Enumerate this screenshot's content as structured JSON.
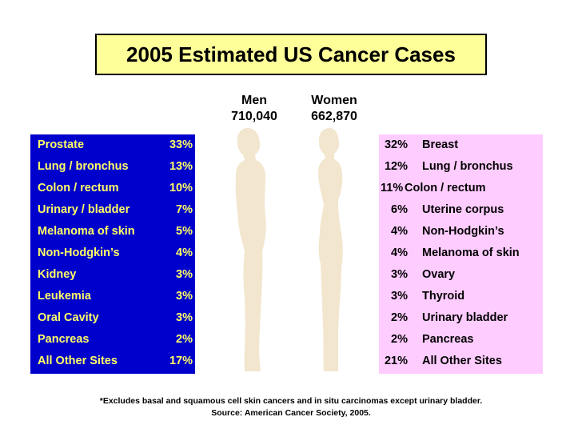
{
  "title": "2005 Estimated US Cancer Cases",
  "chart_data": {
    "type": "table",
    "title": "2005 Estimated US Cancer Cases",
    "men": {
      "label": "Men",
      "total": "710,040",
      "sites": [
        {
          "site": "Prostate",
          "pct": "33%",
          "value": 33
        },
        {
          "site": "Lung / bronchus",
          "pct": "13%",
          "value": 13
        },
        {
          "site": "Colon / rectum",
          "pct": "10%",
          "value": 10
        },
        {
          "site": "Urinary / bladder",
          "pct": "7%",
          "value": 7
        },
        {
          "site": "Melanoma of skin",
          "pct": "5%",
          "value": 5
        },
        {
          "site": "Non-Hodgkin’s",
          "pct": "4%",
          "value": 4
        },
        {
          "site": "Kidney",
          "pct": "3%",
          "value": 3
        },
        {
          "site": "Leukemia",
          "pct": "3%",
          "value": 3
        },
        {
          "site": "Oral Cavity",
          "pct": "3%",
          "value": 3
        },
        {
          "site": "Pancreas",
          "pct": "2%",
          "value": 2
        },
        {
          "site": "All Other Sites",
          "pct": "17%",
          "value": 17
        }
      ]
    },
    "women": {
      "label": "Women",
      "total": "662,870",
      "sites": [
        {
          "pct": "32%",
          "site": "Breast",
          "value": 32
        },
        {
          "pct": "12%",
          "site": "Lung / bronchus",
          "value": 12
        },
        {
          "pct": "11%",
          "site": "Colon / rectum",
          "value": 11
        },
        {
          "pct": "6%",
          "site": "Uterine corpus",
          "value": 6
        },
        {
          "pct": "4%",
          "site": "Non-Hodgkin’s",
          "value": 4
        },
        {
          "pct": "4%",
          "site": "Melanoma of skin",
          "value": 4
        },
        {
          "pct": "3%",
          "site": "Ovary",
          "value": 3
        },
        {
          "pct": "3%",
          "site": "Thyroid",
          "value": 3
        },
        {
          "pct": "2%",
          "site": "Urinary bladder",
          "value": 2
        },
        {
          "pct": "2%",
          "site": "Pancreas",
          "value": 2
        },
        {
          "pct": "21%",
          "site": "All Other Sites",
          "value": 21
        }
      ]
    }
  },
  "footnote": "*Excludes basal and squamous cell skin cancers and in situ carcinomas except urinary bladder.",
  "source": "Source: American Cancer Society, 2005.",
  "colors": {
    "title_bg": "#ffff99",
    "men_panel": "#0000cc",
    "men_text": "#ffff66",
    "women_panel": "#ffccff",
    "silhouette": "#f3e6cf"
  }
}
